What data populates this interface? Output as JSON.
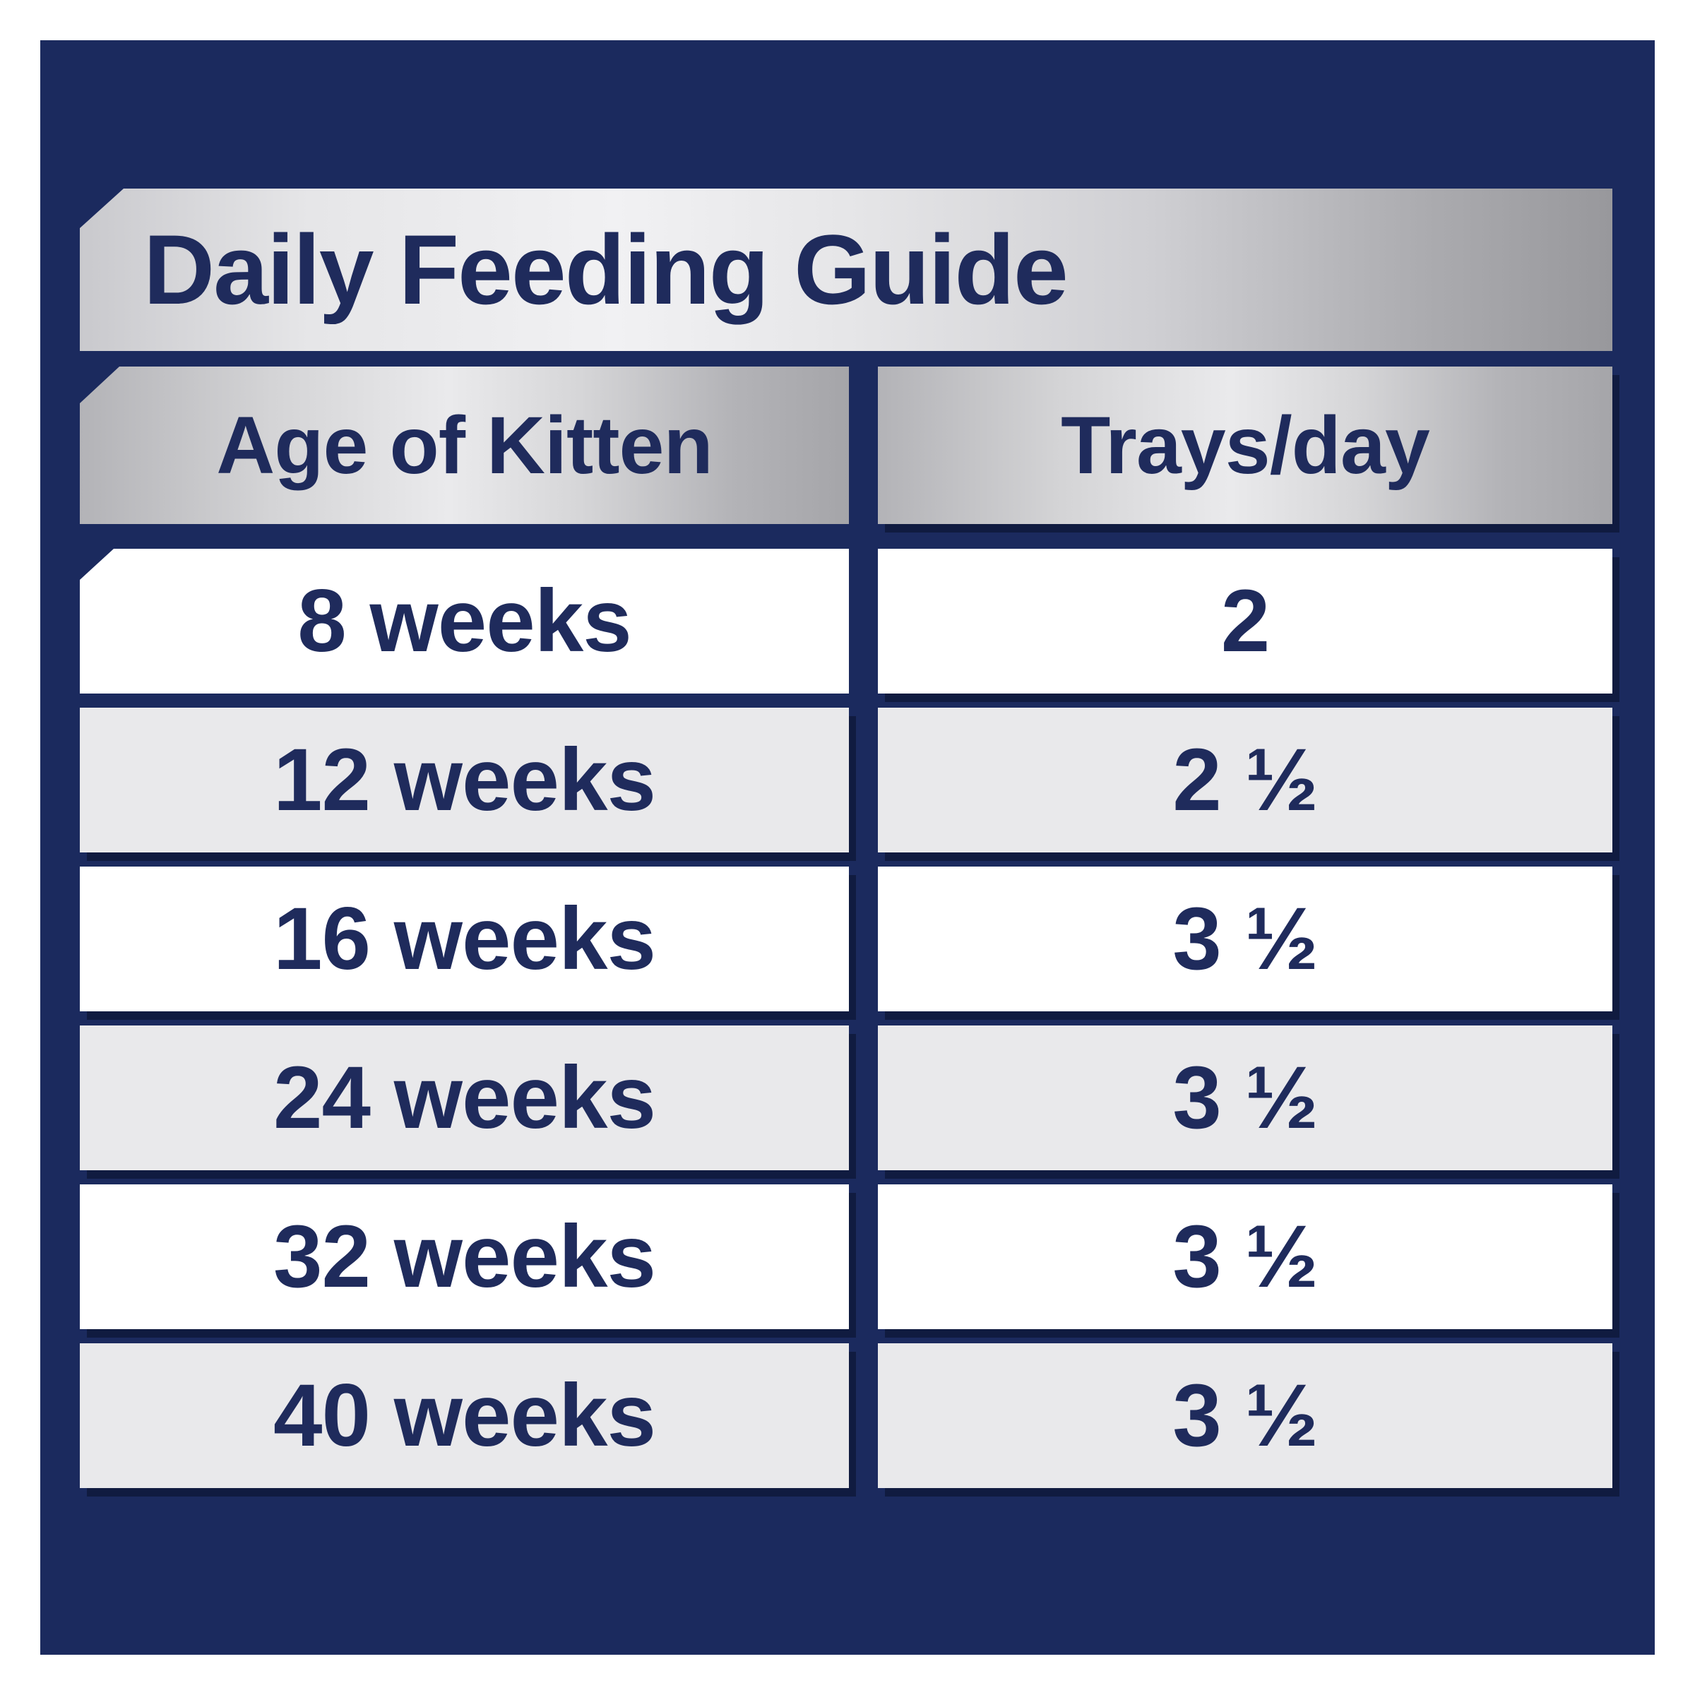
{
  "title": "Daily Feeding Guide",
  "table": {
    "headers": {
      "age": "Age of Kitten",
      "trays": "Trays/day"
    },
    "rows": [
      {
        "age": "8 weeks",
        "trays": "2"
      },
      {
        "age": "12 weeks",
        "trays": "2 ½"
      },
      {
        "age": "16 weeks",
        "trays": "3 ½"
      },
      {
        "age": "24 weeks",
        "trays": "3 ½"
      },
      {
        "age": "32 weeks",
        "trays": "3 ½"
      },
      {
        "age": "40 weeks",
        "trays": "3 ½"
      }
    ]
  },
  "colors": {
    "panel_navy": "#1b2a5e",
    "text_navy": "#1f2b5c",
    "row_white": "#ffffff",
    "row_gray": "#e9e9eb",
    "silver_light": "#f1f1f3",
    "silver_dark": "#98989c",
    "shadow_navy": "#0e1736",
    "page_background": "#ffffff"
  },
  "chart_data": {
    "type": "table",
    "title": "Daily Feeding Guide",
    "columns": [
      "Age of Kitten",
      "Trays/day"
    ],
    "rows": [
      [
        "8 weeks",
        "2"
      ],
      [
        "12 weeks",
        "2 ½"
      ],
      [
        "16 weeks",
        "3 ½"
      ],
      [
        "24 weeks",
        "3 ½"
      ],
      [
        "32 weeks",
        "3 ½"
      ],
      [
        "40 weeks",
        "3 ½"
      ]
    ],
    "age_weeks": [
      8,
      12,
      16,
      24,
      32,
      40
    ],
    "trays_per_day": [
      2,
      2.5,
      3.5,
      3.5,
      3.5,
      3.5
    ],
    "layout_hints": {
      "row_striping": [
        "white",
        "gray",
        "white",
        "gray",
        "white",
        "gray"
      ],
      "header_style": "metallic-silver-gradient",
      "background": "navy"
    }
  }
}
